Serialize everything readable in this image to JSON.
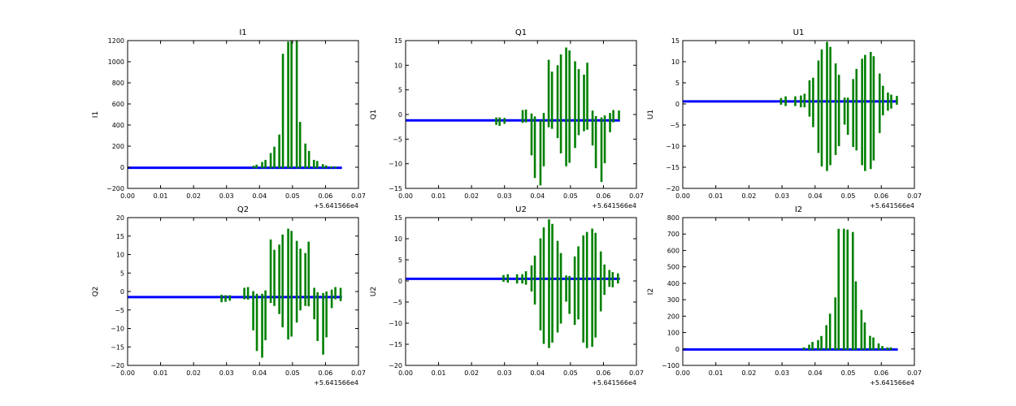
{
  "chart_data": [
    {
      "type": "line",
      "title": "I1",
      "ylabel": "I1",
      "xlabel": "",
      "xlim": [
        0,
        0.07
      ],
      "ylim": [
        -200,
        1200
      ],
      "xticks": [
        0,
        0.01,
        0.02,
        0.03,
        0.04,
        0.05,
        0.06,
        0.07
      ],
      "xtick_labels": [
        "0.00",
        "0.01",
        "0.02",
        "0.03",
        "0.04",
        "0.05",
        "0.06",
        "0.07"
      ],
      "yticks": [
        -200,
        0,
        200,
        400,
        600,
        800,
        1000,
        1200
      ],
      "ytick_labels": [
        "−200",
        "0",
        "200",
        "400",
        "600",
        "800",
        "1000",
        "1200"
      ],
      "x_offset_label": "+5.641566e4",
      "baseline": {
        "value": -5,
        "x_end": 0.065,
        "color": "#0000ff"
      },
      "spike_color": "#008000",
      "spikes": [
        [
          0.0382,
          -10,
          15
        ],
        [
          0.0391,
          -10,
          25
        ],
        [
          0.0408,
          -10,
          50
        ],
        [
          0.0418,
          -10,
          70
        ],
        [
          0.0434,
          -10,
          135
        ],
        [
          0.0445,
          -10,
          195
        ],
        [
          0.046,
          -10,
          310
        ],
        [
          0.0471,
          -10,
          1075
        ],
        [
          0.0487,
          -10,
          1190
        ],
        [
          0.0497,
          -10,
          1195
        ],
        [
          0.0513,
          -10,
          1200
        ],
        [
          0.0523,
          -10,
          430
        ],
        [
          0.0539,
          -10,
          225
        ],
        [
          0.055,
          -10,
          155
        ],
        [
          0.0565,
          -10,
          70
        ],
        [
          0.0575,
          -10,
          60
        ],
        [
          0.0592,
          -10,
          30
        ],
        [
          0.0602,
          -10,
          18
        ],
        [
          0.0618,
          -10,
          8
        ],
        [
          0.063,
          -10,
          8
        ]
      ]
    },
    {
      "type": "line",
      "title": "Q1",
      "ylabel": "Q1",
      "xlabel": "",
      "xlim": [
        0,
        0.07
      ],
      "ylim": [
        -15,
        15
      ],
      "xticks": [
        0,
        0.01,
        0.02,
        0.03,
        0.04,
        0.05,
        0.06,
        0.07
      ],
      "xtick_labels": [
        "0.00",
        "0.01",
        "0.02",
        "0.03",
        "0.04",
        "0.05",
        "0.06",
        "0.07"
      ],
      "yticks": [
        -15,
        -10,
        -5,
        0,
        5,
        10,
        15
      ],
      "ytick_labels": [
        "−15",
        "−10",
        "−5",
        "0",
        "5",
        "10",
        "15"
      ],
      "x_offset_label": "+5.641566e4",
      "baseline": {
        "value": -1.2,
        "x_end": 0.065,
        "color": "#0000ff"
      },
      "spike_color": "#008000",
      "spikes": [
        [
          0.0275,
          -0.6,
          -2.1
        ],
        [
          0.0285,
          -0.6,
          -2.3
        ],
        [
          0.03,
          -0.7,
          -1.9
        ],
        [
          0.0355,
          0.9,
          -1.7
        ],
        [
          0.0365,
          1.0,
          -1.6
        ],
        [
          0.0382,
          0.2,
          -8.3
        ],
        [
          0.0392,
          -0.4,
          -12.9
        ],
        [
          0.0409,
          -1.2,
          -14.4
        ],
        [
          0.0419,
          0.3,
          -10.5
        ],
        [
          0.0434,
          11.1,
          -2.6
        ],
        [
          0.0444,
          8.7,
          -2.9
        ],
        [
          0.0461,
          10.0,
          -4.8
        ],
        [
          0.0471,
          12.2,
          -7.9
        ],
        [
          0.0487,
          13.6,
          -10.5
        ],
        [
          0.0497,
          13.0,
          -9.8
        ],
        [
          0.0514,
          10.8,
          -6.8
        ],
        [
          0.0525,
          9.2,
          -4.2
        ],
        [
          0.0541,
          8.1,
          -3.4
        ],
        [
          0.0551,
          10.5,
          -3.1
        ],
        [
          0.0567,
          0.8,
          -6.3
        ],
        [
          0.0577,
          -0.3,
          -10.9
        ],
        [
          0.0594,
          -0.6,
          -13.7
        ],
        [
          0.0604,
          -0.2,
          -9.9
        ],
        [
          0.062,
          0.3,
          -3.6
        ],
        [
          0.063,
          0.9,
          -1.6
        ],
        [
          0.0647,
          0.8,
          -1.1
        ]
      ]
    },
    {
      "type": "line",
      "title": "U1",
      "ylabel": "U1",
      "xlabel": "",
      "xlim": [
        0,
        0.07
      ],
      "ylim": [
        -20,
        15
      ],
      "xticks": [
        0,
        0.01,
        0.02,
        0.03,
        0.04,
        0.05,
        0.06,
        0.07
      ],
      "xtick_labels": [
        "0.00",
        "0.01",
        "0.02",
        "0.03",
        "0.04",
        "0.05",
        "0.06",
        "0.07"
      ],
      "yticks": [
        -20,
        -15,
        -10,
        -5,
        0,
        5,
        10,
        15
      ],
      "ytick_labels": [
        "−20",
        "−15",
        "−10",
        "−5",
        "0",
        "5",
        "10",
        "15"
      ],
      "x_offset_label": "+5.641566e4",
      "baseline": {
        "value": 0.6,
        "x_end": 0.065,
        "color": "#0000ff"
      },
      "spike_color": "#008000",
      "spikes": [
        [
          0.0297,
          1.4,
          -0.2
        ],
        [
          0.0311,
          1.8,
          -0.5
        ],
        [
          0.034,
          1.8,
          -0.5
        ],
        [
          0.0357,
          2.0,
          -0.8
        ],
        [
          0.0368,
          2.4,
          -0.8
        ],
        [
          0.0383,
          5.6,
          -3.0
        ],
        [
          0.0394,
          6.2,
          -5.5
        ],
        [
          0.041,
          10.3,
          -11.6
        ],
        [
          0.042,
          12.9,
          -14.8
        ],
        [
          0.0436,
          14.7,
          -15.9
        ],
        [
          0.0446,
          13.5,
          -14.5
        ],
        [
          0.0462,
          9.6,
          -12.1
        ],
        [
          0.0472,
          6.9,
          -10.0
        ],
        [
          0.0489,
          1.5,
          -4.9
        ],
        [
          0.0499,
          1.5,
          -7.3
        ],
        [
          0.0515,
          5.9,
          -10.2
        ],
        [
          0.0525,
          8.3,
          -11.0
        ],
        [
          0.0542,
          10.7,
          -14.5
        ],
        [
          0.0551,
          11.6,
          -15.9
        ],
        [
          0.0568,
          12.3,
          -15.4
        ],
        [
          0.0577,
          11.3,
          -13.4
        ],
        [
          0.0595,
          7.2,
          -6.9
        ],
        [
          0.0605,
          4.3,
          -2.7
        ],
        [
          0.062,
          2.7,
          -1.6
        ],
        [
          0.063,
          2.2,
          -1.1
        ],
        [
          0.0647,
          1.9,
          -0.2
        ]
      ]
    },
    {
      "type": "line",
      "title": "Q2",
      "ylabel": "Q2",
      "xlabel": "",
      "xlim": [
        0,
        0.07
      ],
      "ylim": [
        -20,
        20
      ],
      "xticks": [
        0,
        0.01,
        0.02,
        0.03,
        0.04,
        0.05,
        0.06,
        0.07
      ],
      "xtick_labels": [
        "0.00",
        "0.01",
        "0.02",
        "0.03",
        "0.04",
        "0.05",
        "0.06",
        "0.07"
      ],
      "yticks": [
        -20,
        -15,
        -10,
        -5,
        0,
        5,
        10,
        15,
        20
      ],
      "ytick_labels": [
        "−20",
        "−15",
        "−10",
        "−5",
        "0",
        "5",
        "10",
        "15",
        "20"
      ],
      "x_offset_label": "+5.641566e4",
      "baseline": {
        "value": -1.5,
        "x_end": 0.065,
        "color": "#0000ff"
      },
      "spike_color": "#008000",
      "spikes": [
        [
          0.0285,
          -0.9,
          -2.9
        ],
        [
          0.0297,
          -1.0,
          -2.8
        ],
        [
          0.031,
          -1.0,
          -2.5
        ],
        [
          0.0354,
          1.0,
          -2.1
        ],
        [
          0.0365,
          1.2,
          -2.2
        ],
        [
          0.0381,
          0.1,
          -10.5
        ],
        [
          0.0392,
          -0.6,
          -16.1
        ],
        [
          0.0408,
          -0.6,
          -17.9
        ],
        [
          0.0418,
          0.3,
          -13.2
        ],
        [
          0.0434,
          14.1,
          -3.1
        ],
        [
          0.0445,
          11.3,
          -3.9
        ],
        [
          0.046,
          12.7,
          -6.1
        ],
        [
          0.047,
          15.4,
          -9.7
        ],
        [
          0.0487,
          17.0,
          -13.0
        ],
        [
          0.0497,
          16.4,
          -12.2
        ],
        [
          0.0513,
          13.7,
          -8.4
        ],
        [
          0.0524,
          11.6,
          -5.1
        ],
        [
          0.0539,
          10.4,
          -3.9
        ],
        [
          0.0549,
          13.5,
          -4.0
        ],
        [
          0.0566,
          1.0,
          -7.5
        ],
        [
          0.0576,
          -0.2,
          -13.4
        ],
        [
          0.0593,
          -0.4,
          -17.1
        ],
        [
          0.0603,
          0.0,
          -12.4
        ],
        [
          0.0619,
          0.5,
          -4.5
        ],
        [
          0.063,
          1.2,
          -2.1
        ],
        [
          0.0646,
          1.0,
          -2.6
        ]
      ]
    },
    {
      "type": "line",
      "title": "U2",
      "ylabel": "U2",
      "xlabel": "",
      "xlim": [
        0,
        0.07
      ],
      "ylim": [
        -20,
        15
      ],
      "xticks": [
        0,
        0.01,
        0.02,
        0.03,
        0.04,
        0.05,
        0.06,
        0.07
      ],
      "xtick_labels": [
        "0.00",
        "0.01",
        "0.02",
        "0.03",
        "0.04",
        "0.05",
        "0.06",
        "0.07"
      ],
      "yticks": [
        -20,
        -15,
        -10,
        -5,
        0,
        5,
        10,
        15
      ],
      "ytick_labels": [
        "−20",
        "−15",
        "−10",
        "−5",
        "0",
        "5",
        "10",
        "15"
      ],
      "x_offset_label": "+5.641566e4",
      "baseline": {
        "value": 0.5,
        "x_end": 0.065,
        "color": "#0000ff"
      },
      "spike_color": "#008000",
      "spikes": [
        [
          0.0297,
          1.4,
          -0.2
        ],
        [
          0.031,
          1.6,
          -0.4
        ],
        [
          0.0338,
          1.6,
          -0.6
        ],
        [
          0.0354,
          1.6,
          -0.6
        ],
        [
          0.0365,
          2.3,
          -0.9
        ],
        [
          0.0382,
          3.7,
          -2.5
        ],
        [
          0.0392,
          6.0,
          -5.6
        ],
        [
          0.0409,
          10.1,
          -11.7
        ],
        [
          0.0419,
          12.7,
          -14.9
        ],
        [
          0.0435,
          14.6,
          -15.9
        ],
        [
          0.0445,
          13.5,
          -14.6
        ],
        [
          0.0461,
          9.5,
          -12.2
        ],
        [
          0.0471,
          6.6,
          -10.1
        ],
        [
          0.0487,
          1.3,
          -4.9
        ],
        [
          0.0497,
          1.2,
          -7.8
        ],
        [
          0.0513,
          5.8,
          -10.4
        ],
        [
          0.0524,
          8.2,
          -9.1
        ],
        [
          0.0539,
          10.8,
          -14.6
        ],
        [
          0.055,
          11.6,
          -15.9
        ],
        [
          0.0566,
          12.4,
          -15.6
        ],
        [
          0.0576,
          11.4,
          -13.4
        ],
        [
          0.0592,
          7.0,
          -7.2
        ],
        [
          0.0603,
          3.9,
          -3.3
        ],
        [
          0.0618,
          2.6,
          -1.4
        ],
        [
          0.0628,
          2.1,
          -1.5
        ],
        [
          0.0644,
          1.8,
          -0.6
        ]
      ]
    },
    {
      "type": "line",
      "title": "I2",
      "ylabel": "I2",
      "xlabel": "",
      "xlim": [
        0,
        0.07
      ],
      "ylim": [
        -100,
        800
      ],
      "xticks": [
        0,
        0.01,
        0.02,
        0.03,
        0.04,
        0.05,
        0.06,
        0.07
      ],
      "xtick_labels": [
        "0.00",
        "0.01",
        "0.02",
        "0.03",
        "0.04",
        "0.05",
        "0.06",
        "0.07"
      ],
      "yticks": [
        -100,
        0,
        100,
        200,
        300,
        400,
        500,
        600,
        700,
        800
      ],
      "ytick_labels": [
        "−100",
        "0",
        "100",
        "200",
        "300",
        "400",
        "500",
        "600",
        "700",
        "800"
      ],
      "x_offset_label": "+5.641566e4",
      "baseline": {
        "value": -3,
        "x_end": 0.065,
        "color": "#0000ff"
      },
      "spike_color": "#008000",
      "spikes": [
        [
          0.0366,
          -6,
          10
        ],
        [
          0.0382,
          -6,
          26
        ],
        [
          0.0392,
          -6,
          43
        ],
        [
          0.0409,
          -6,
          54
        ],
        [
          0.0419,
          -6,
          79
        ],
        [
          0.0434,
          -6,
          145
        ],
        [
          0.0445,
          -6,
          215
        ],
        [
          0.0461,
          -6,
          314
        ],
        [
          0.0471,
          -6,
          732
        ],
        [
          0.0487,
          -6,
          732
        ],
        [
          0.0498,
          -6,
          727
        ],
        [
          0.0514,
          -6,
          712
        ],
        [
          0.0523,
          -6,
          412
        ],
        [
          0.054,
          -6,
          238
        ],
        [
          0.055,
          -6,
          162
        ],
        [
          0.0566,
          -6,
          80
        ],
        [
          0.0576,
          -6,
          70
        ],
        [
          0.0592,
          -6,
          34
        ],
        [
          0.0603,
          -6,
          18
        ],
        [
          0.0619,
          -6,
          10
        ],
        [
          0.0629,
          -6,
          10
        ]
      ]
    }
  ]
}
